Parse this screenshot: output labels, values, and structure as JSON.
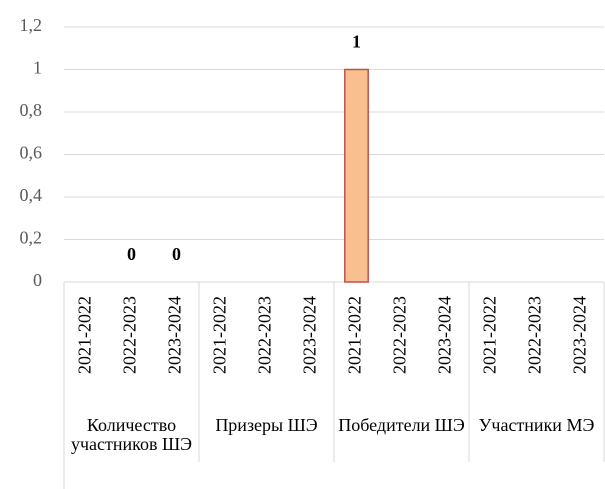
{
  "chart_data": {
    "type": "bar",
    "groups": [
      "Количество участников ШЭ",
      "Призеры ШЭ",
      "Победители ШЭ",
      "Участники МЭ"
    ],
    "categories": [
      "2021-2022",
      "2022-2023",
      "2023-2024",
      "2021-2022",
      "2022-2023",
      "2023-2024",
      "2021-2022",
      "2022-2023",
      "2023-2024",
      "2021-2022",
      "2022-2023",
      "2023-2024"
    ],
    "values": [
      null,
      0,
      0,
      null,
      null,
      null,
      1,
      null,
      null,
      null,
      null,
      null
    ],
    "color": "#f9c08f",
    "edge_color": "#c0504d",
    "ylim": [
      0,
      1.2
    ],
    "yticks": [
      0,
      {
        "value": 0.2,
        "label": "0,2"
      },
      {
        "value": 0.4,
        "label": "0,4"
      },
      {
        "value": 0.6,
        "label": "0,6"
      },
      {
        "value": 0.8,
        "label": "0,8"
      },
      1,
      {
        "value": 1.2,
        "label": "1,2"
      }
    ],
    "grid": true
  }
}
